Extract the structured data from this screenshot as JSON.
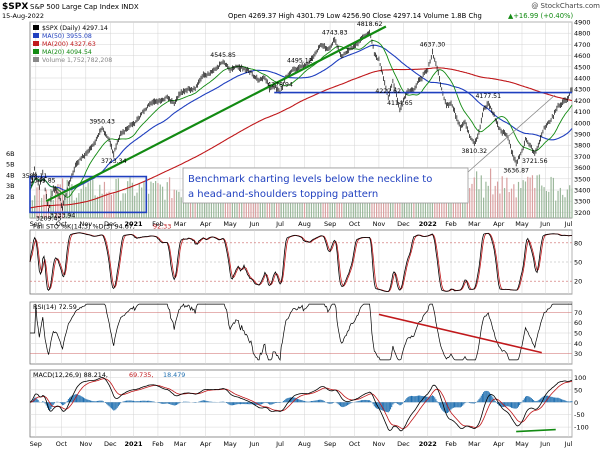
{
  "header": {
    "symbol": "$SPX",
    "name": "S&P 500 Large Cap Index",
    "exchange": "INDX",
    "date": "15-Aug-2022",
    "open_label": "Open",
    "open": "4269.37",
    "high_label": "High",
    "high": "4301.79",
    "low_label": "Low",
    "low": "4256.90",
    "close_label": "Close",
    "close": "4297.14",
    "volume_label": "Volume",
    "volume": "1.8B",
    "change_label": "Chg",
    "change": "+16.99 (+0.40%)",
    "up_arrow": "▲",
    "watermark": "@ StockCharts.com"
  },
  "chart_data": [
    {
      "type": "line",
      "title": "S&P 500 Large Cap Index (Daily)",
      "legend": [
        {
          "label": "$SPX (Daily) 4297.14",
          "color": "#000000"
        },
        {
          "label": "MA(50) 3955.08",
          "color": "#1f3fbf"
        },
        {
          "label": "MA(200) 4327.63",
          "color": "#c0181b"
        },
        {
          "label": "MA(20) 4094.54",
          "color": "#128a12"
        },
        {
          "label": "Volume 1,752,782,208",
          "color": "#888888"
        }
      ],
      "ylim": [
        3150,
        4900
      ],
      "yticks": [
        3200,
        3300,
        3400,
        3500,
        3600,
        3700,
        3800,
        3900,
        4000,
        4100,
        4200,
        4300,
        4400,
        4500,
        4600,
        4700,
        4800,
        4900
      ],
      "volume_ticks": [
        {
          "label": "6B",
          "value": 6
        },
        {
          "label": "5B",
          "value": 5
        },
        {
          "label": "4B",
          "value": 4
        },
        {
          "label": "3B",
          "value": 3
        },
        {
          "label": "2B",
          "value": 2
        }
      ],
      "pivots": [
        [
          0,
          3400
        ],
        [
          4,
          3588
        ],
        [
          8,
          3420
        ],
        [
          11,
          3549
        ],
        [
          16,
          3209
        ],
        [
          20,
          3420
        ],
        [
          24,
          3380
        ],
        [
          28,
          3233
        ],
        [
          33,
          3450
        ],
        [
          40,
          3640
        ],
        [
          48,
          3720
        ],
        [
          54,
          3800
        ],
        [
          62,
          3950
        ],
        [
          68,
          3850
        ],
        [
          72,
          3723
        ],
        [
          78,
          3900
        ],
        [
          84,
          3960
        ],
        [
          90,
          4000
        ],
        [
          96,
          4080
        ],
        [
          104,
          4180
        ],
        [
          112,
          4200
        ],
        [
          118,
          4230
        ],
        [
          124,
          4180
        ],
        [
          130,
          4280
        ],
        [
          136,
          4300
        ],
        [
          142,
          4300
        ],
        [
          148,
          4420
        ],
        [
          154,
          4440
        ],
        [
          160,
          4480
        ],
        [
          166,
          4545
        ],
        [
          172,
          4470
        ],
        [
          178,
          4500
        ],
        [
          184,
          4480
        ],
        [
          190,
          4450
        ],
        [
          196,
          4380
        ],
        [
          202,
          4410
        ],
        [
          206,
          4300
        ],
        [
          210,
          4330
        ],
        [
          215,
          4278
        ],
        [
          220,
          4400
        ],
        [
          226,
          4480
        ],
        [
          232,
          4495
        ],
        [
          238,
          4520
        ],
        [
          244,
          4600
        ],
        [
          250,
          4700
        ],
        [
          256,
          4650
        ],
        [
          262,
          4743
        ],
        [
          268,
          4590
        ],
        [
          274,
          4650
        ],
        [
          280,
          4690
        ],
        [
          286,
          4760
        ],
        [
          292,
          4818
        ],
        [
          296,
          4620
        ],
        [
          300,
          4560
        ],
        [
          304,
          4410
        ],
        [
          308,
          4222
        ],
        [
          312,
          4380
        ],
        [
          318,
          4114
        ],
        [
          324,
          4280
        ],
        [
          330,
          4300
        ],
        [
          334,
          4370
        ],
        [
          338,
          4420
        ],
        [
          342,
          4470
        ],
        [
          346,
          4637
        ],
        [
          350,
          4490
        ],
        [
          354,
          4300
        ],
        [
          358,
          4160
        ],
        [
          362,
          4180
        ],
        [
          366,
          4070
        ],
        [
          370,
          3960
        ],
        [
          374,
          4010
        ],
        [
          378,
          3880
        ],
        [
          382,
          3810
        ],
        [
          386,
          3910
        ],
        [
          390,
          4120
        ],
        [
          394,
          4177
        ],
        [
          398,
          4090
        ],
        [
          402,
          3980
        ],
        [
          406,
          3920
        ],
        [
          410,
          3900
        ],
        [
          414,
          3750
        ],
        [
          418,
          3636
        ],
        [
          422,
          3720
        ],
        [
          426,
          3850
        ],
        [
          430,
          3800
        ],
        [
          434,
          3721
        ],
        [
          438,
          3830
        ],
        [
          442,
          3960
        ],
        [
          446,
          4000
        ],
        [
          450,
          4060
        ],
        [
          454,
          4150
        ],
        [
          458,
          4180
        ],
        [
          462,
          4220
        ],
        [
          466,
          4297
        ]
      ],
      "n_bars": 467,
      "annotations": [
        {
          "text": "3588.11",
          "bar": 4,
          "price": 3588
        },
        {
          "text": "3549.85",
          "bar": 11,
          "price": 3549
        },
        {
          "text": "3209.45",
          "bar": 16,
          "price": 3209
        },
        {
          "text": "3233.94",
          "bar": 28,
          "price": 3233
        },
        {
          "text": "3950.43",
          "bar": 62,
          "price": 3950
        },
        {
          "text": "3723.34",
          "bar": 72,
          "price": 3723
        },
        {
          "text": "4545.85",
          "bar": 166,
          "price": 4545
        },
        {
          "text": "4278.94",
          "bar": 215,
          "price": 4278
        },
        {
          "text": "4495.12",
          "bar": 232,
          "price": 4495
        },
        {
          "text": "4743.83",
          "bar": 262,
          "price": 4743
        },
        {
          "text": "4818.62",
          "bar": 292,
          "price": 4818
        },
        {
          "text": "4222.62",
          "bar": 308,
          "price": 4222
        },
        {
          "text": "4114.65",
          "bar": 318,
          "price": 4114
        },
        {
          "text": "4637.30",
          "bar": 346,
          "price": 4637
        },
        {
          "text": "4177.51",
          "bar": 394,
          "price": 4177
        },
        {
          "text": "3810.32",
          "bar": 382,
          "price": 3810
        },
        {
          "text": "3636.87",
          "bar": 418,
          "price": 3636
        },
        {
          "text": "3721.56",
          "bar": 434,
          "price": 3721
        }
      ],
      "callout": {
        "lines": [
          "Benchmark charting levels below the neckline to",
          "a head-and-shoulders topping pattern"
        ]
      },
      "neckline_price": 4270,
      "green_trend": {
        "from": [
          14,
          3300
        ],
        "to": [
          306,
          4860
        ]
      },
      "support_box": {
        "bar_from": 0,
        "bar_to": 100,
        "price_lo": 3200,
        "price_hi": 3520
      }
    },
    {
      "type": "line",
      "title": "Full STO %K(14,3) %D(3) 94.67, 92.33",
      "legend": [
        {
          "label": "Full STO %K(14,3) %D(3) 94.67,",
          "color": "#000000"
        },
        {
          "label": "92.33",
          "color": "#c0181b"
        }
      ],
      "ylim": [
        0,
        100
      ],
      "yticks": [
        20,
        50,
        80
      ]
    },
    {
      "type": "line",
      "title": "RSI(14) 72.59",
      "legend": [
        {
          "label": "RSI(14) 72.59",
          "color": "#000000"
        }
      ],
      "ylim": [
        20,
        80
      ],
      "yticks": [
        30,
        40,
        50,
        60,
        70
      ]
    },
    {
      "type": "bar",
      "title": "MACD(12,26,9) 88.214, 69.735, 18.479",
      "legend": [
        {
          "label": "MACD(12,26,9) 88.214,",
          "color": "#000000"
        },
        {
          "label": "69.735,",
          "color": "#c0181b"
        },
        {
          "label": "18.479",
          "color": "#1f6fb0"
        }
      ],
      "ylim": [
        -140,
        130
      ],
      "yticks": [
        -100,
        -50,
        0,
        50,
        100
      ]
    }
  ],
  "x_axis": {
    "labels": [
      {
        "text": "Sep",
        "bar": 5
      },
      {
        "text": "Oct",
        "bar": 27
      },
      {
        "text": "Nov",
        "bar": 48
      },
      {
        "text": "Dec",
        "bar": 69
      },
      {
        "text": "2021",
        "bar": 89
      },
      {
        "text": "Feb",
        "bar": 110
      },
      {
        "text": "Mar",
        "bar": 129
      },
      {
        "text": "Apr",
        "bar": 151
      },
      {
        "text": "May",
        "bar": 172
      },
      {
        "text": "Jun",
        "bar": 193
      },
      {
        "text": "Jul",
        "bar": 215
      },
      {
        "text": "Aug",
        "bar": 236
      },
      {
        "text": "Sep",
        "bar": 258
      },
      {
        "text": "Oct",
        "bar": 279
      },
      {
        "text": "Nov",
        "bar": 300
      },
      {
        "text": "Dec",
        "bar": 321
      },
      {
        "text": "2022",
        "bar": 342
      },
      {
        "text": "Feb",
        "bar": 362
      },
      {
        "text": "Mar",
        "bar": 382
      },
      {
        "text": "Apr",
        "bar": 403
      },
      {
        "text": "May",
        "bar": 423
      },
      {
        "text": "Jun",
        "bar": 443
      },
      {
        "text": "Jul",
        "bar": 463
      },
      {
        "text": "Aug",
        "bar": 466
      }
    ]
  },
  "colors": {
    "price": "#000000",
    "ma50": "#1f3fbf",
    "ma200": "#c0181b",
    "ma20": "#128a12",
    "volume": "#b8b8b8",
    "neckline": "#1f3fbf",
    "trend": "#128a12",
    "callout_text": "#1f3fbf",
    "grid": "#d4d4d4",
    "rsi_line": "#c0181b",
    "macd_hist": "#1f6fb0",
    "panel_fill": "#e4e4e4"
  }
}
